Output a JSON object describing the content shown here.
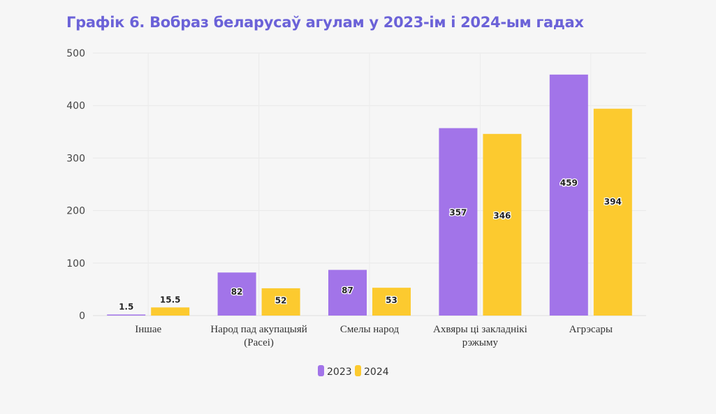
{
  "chart_data": {
    "type": "bar",
    "title": "Графік 6. Вобраз беларусаў агулам у 2023-ім і 2024-ым гадах",
    "categories": [
      [
        "Іншае"
      ],
      [
        "Народ пад акупацыяй",
        "(Расеі)"
      ],
      [
        "Смелы народ"
      ],
      [
        "Ахвяры ці закладнікі",
        "рэжыму"
      ],
      [
        "Агрэсары"
      ]
    ],
    "series": [
      {
        "name": "2023",
        "color": "#a274e9",
        "values": [
          1.5,
          82,
          87,
          357,
          459
        ]
      },
      {
        "name": "2024",
        "color": "#fcca2f",
        "values": [
          15.5,
          52,
          53,
          346,
          394
        ]
      }
    ],
    "data_labels": [
      [
        "1.5",
        "82",
        "87",
        "357",
        "459"
      ],
      [
        "15.5",
        "52",
        "53",
        "346",
        "394"
      ]
    ],
    "ylim": [
      0,
      500
    ],
    "yticks": [
      0,
      100,
      200,
      300,
      400,
      500
    ],
    "grid": true,
    "legend": "bottom-center",
    "xlabel": "",
    "ylabel": ""
  }
}
